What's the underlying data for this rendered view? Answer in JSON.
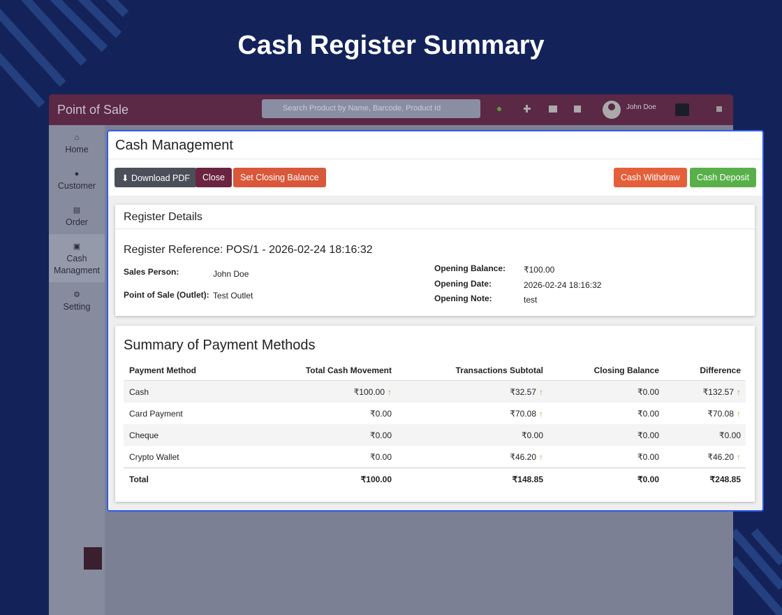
{
  "header": {
    "title": "Cash Register Summary"
  },
  "app": {
    "brand": "Point of Sale",
    "search_placeholder": "Search Product by Name, Barcode, Product Id",
    "user": "John Doe"
  },
  "sidebar": [
    "Home",
    "Customer",
    "Order",
    "Cash Managment",
    "Setting"
  ],
  "sidebar_active": 3,
  "modal": {
    "title": "Cash Management",
    "buttons": [
      "Download PDF",
      "Close",
      "Set Closing Balance",
      "Cash Withdraw",
      "Cash Deposit"
    ]
  },
  "register": {
    "heading": "Register Details",
    "reference": "Register Reference: POS/1 - 2026-02-24 18:16:32",
    "left": [
      {
        "label": "Sales Person:",
        "value": "John Doe"
      },
      {
        "label": "Point of Sale (Outlet):",
        "value": "Test Outlet"
      }
    ],
    "right": [
      {
        "label": "Opening Balance:",
        "value": "₹100.00"
      },
      {
        "label": "Opening Date:",
        "value": "2026-02-24 18:16:32"
      },
      {
        "label": "Opening Note:",
        "value": "test"
      }
    ]
  },
  "summary": {
    "heading": "Summary of Payment Methods",
    "columns": [
      "Payment Method",
      "Total Cash Movement",
      "Transactions Subtotal",
      "Closing Balance",
      "Difference"
    ],
    "rows": [
      [
        {
          "text": "Cash"
        },
        {
          "text": "₹100.00",
          "up": true
        },
        {
          "text": "₹32.57",
          "up": true
        },
        {
          "text": "₹0.00"
        },
        {
          "text": "₹132.57",
          "up": true
        }
      ],
      [
        {
          "text": "Card Payment"
        },
        {
          "text": "₹0.00"
        },
        {
          "text": "₹70.08",
          "up": true
        },
        {
          "text": "₹0.00"
        },
        {
          "text": "₹70.08",
          "up": true
        }
      ],
      [
        {
          "text": "Cheque"
        },
        {
          "text": "₹0.00"
        },
        {
          "text": "₹0.00"
        },
        {
          "text": "₹0.00"
        },
        {
          "text": "₹0.00"
        }
      ],
      [
        {
          "text": "Crypto Wallet"
        },
        {
          "text": "₹0.00"
        },
        {
          "text": "₹46.20",
          "up": true
        },
        {
          "text": "₹0.00"
        },
        {
          "text": "₹46.20",
          "up": true
        }
      ]
    ],
    "total": [
      "Total",
      "₹100.00",
      "₹148.85",
      "₹0.00",
      "₹248.85"
    ]
  }
}
